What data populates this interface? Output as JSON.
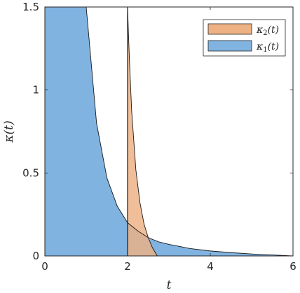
{
  "chart_data": {
    "type": "area",
    "xlabel": "t",
    "ylabel": "κ(t)",
    "xlim": [
      0,
      6
    ],
    "ylim": [
      0,
      1.5
    ],
    "xticks": [
      0,
      2,
      4,
      6
    ],
    "xtick_labels": [
      "0",
      "2",
      "4",
      "6"
    ],
    "yticks": [
      0,
      0.5,
      1,
      1.5
    ],
    "ytick_labels": [
      "0",
      "0.5",
      "1",
      "1.5"
    ],
    "grid": false,
    "legend_position": "top-right",
    "series": [
      {
        "name_main": "κ",
        "name_sub": "2",
        "name_arg": "(t)",
        "color": "#EDB183",
        "x": [
          2.0,
          2.02,
          2.05,
          2.1,
          2.2,
          2.3,
          2.4,
          2.5,
          2.6,
          2.718
        ],
        "y": [
          1.5,
          1.35,
          1.15,
          0.87,
          0.52,
          0.32,
          0.19,
          0.11,
          0.05,
          0.0
        ]
      },
      {
        "name_main": "κ",
        "name_sub": "1",
        "name_arg": "(t)",
        "color": "#80B3E0",
        "x": [
          0,
          0.25,
          0.5,
          0.75,
          1.0,
          1.25,
          1.5,
          1.75,
          2.0,
          2.25,
          2.5,
          2.75,
          3.0,
          3.5,
          4.0,
          4.5,
          5.0,
          5.5,
          6.0
        ],
        "y": [
          1.5,
          1.5,
          1.5,
          1.5,
          1.5,
          0.8,
          0.47,
          0.3,
          0.2,
          0.15,
          0.11,
          0.085,
          0.07,
          0.045,
          0.03,
          0.02,
          0.012,
          0.006,
          0.0
        ]
      }
    ]
  }
}
